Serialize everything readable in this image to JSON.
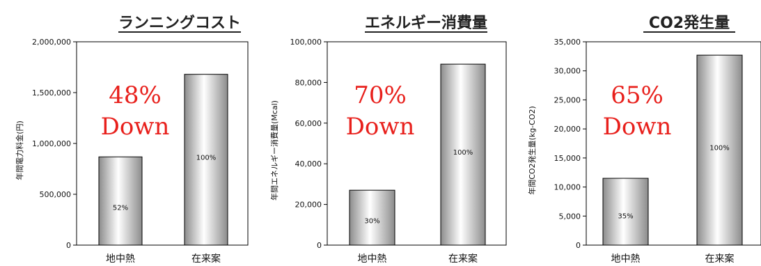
{
  "colors": {
    "annotation": "#e8201c",
    "bar_light": "#ffffff",
    "bar_dark": "#8c8c8c",
    "frame": "#000000"
  },
  "chart_data": [
    {
      "type": "bar",
      "title": "ランニングコスト",
      "ylabel": "年間電力料金(円)",
      "categories": [
        "地中熱",
        "在来案"
      ],
      "values": [
        868000,
        1680000
      ],
      "bar_labels": [
        "52%",
        "100%"
      ],
      "annotation": [
        "48%",
        "Down"
      ],
      "ylim": [
        0,
        2000000
      ],
      "yticks": [
        0,
        500000,
        1000000,
        1500000,
        2000000
      ],
      "ytick_labels": [
        "0",
        "500,000",
        "1,000,000",
        "1,500,000",
        "2,000,000"
      ],
      "grid": false
    },
    {
      "type": "bar",
      "title": "エネルギー消費量",
      "ylabel": "年間エネルギー消費量(Mcal)",
      "categories": [
        "地中熱",
        "在来案"
      ],
      "values": [
        27000,
        89000
      ],
      "bar_labels": [
        "30%",
        "100%"
      ],
      "annotation": [
        "70%",
        "Down"
      ],
      "ylim": [
        0,
        100000
      ],
      "yticks": [
        0,
        20000,
        40000,
        60000,
        80000,
        100000
      ],
      "ytick_labels": [
        "0",
        "20,000",
        "40,000",
        "60,000",
        "80,000",
        "100,000"
      ],
      "grid": false
    },
    {
      "type": "bar",
      "title": "CO2発生量",
      "ylabel": "年間CO2発生量(kg-CO2)",
      "categories": [
        "地中熱",
        "在来案"
      ],
      "values": [
        11500,
        32700
      ],
      "bar_labels": [
        "35%",
        "100%"
      ],
      "annotation": [
        "65%",
        "Down"
      ],
      "ylim": [
        0,
        35000
      ],
      "yticks": [
        0,
        5000,
        10000,
        15000,
        20000,
        25000,
        30000,
        35000
      ],
      "ytick_labels": [
        "0",
        "5,000",
        "10,000",
        "15,000",
        "20,000",
        "25,000",
        "30,000",
        "35,000"
      ],
      "grid": false
    }
  ]
}
